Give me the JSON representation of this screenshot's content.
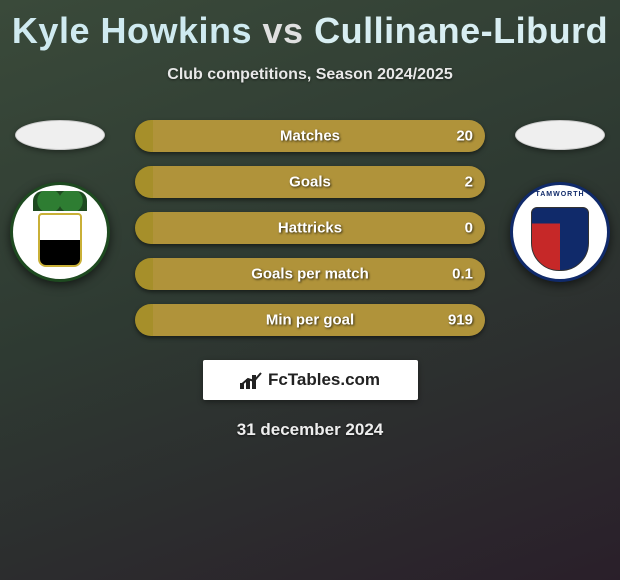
{
  "title": {
    "player1": "Kyle Howkins",
    "vs": "vs",
    "player2": "Cullinane-Liburd"
  },
  "subtitle": "Club competitions, Season 2024/2025",
  "colors": {
    "player1": "#a68f2a",
    "player2": "#b0933a",
    "title_p1": "#cfeaf0",
    "title_p2": "#d8eef2",
    "brand_box": "#ffffff",
    "text": "#ffffff"
  },
  "stats": [
    {
      "label": "Matches",
      "left_value": "",
      "right_value": "20",
      "left_pct": 5,
      "right_pct": 95
    },
    {
      "label": "Goals",
      "left_value": "",
      "right_value": "2",
      "left_pct": 5,
      "right_pct": 95
    },
    {
      "label": "Hattricks",
      "left_value": "",
      "right_value": "0",
      "left_pct": 5,
      "right_pct": 95
    },
    {
      "label": "Goals per match",
      "left_value": "",
      "right_value": "0.1",
      "left_pct": 5,
      "right_pct": 95
    },
    {
      "label": "Min per goal",
      "left_value": "",
      "right_value": "919",
      "left_pct": 5,
      "right_pct": 95
    }
  ],
  "brand": "FcTables.com",
  "date": "31 december 2024"
}
